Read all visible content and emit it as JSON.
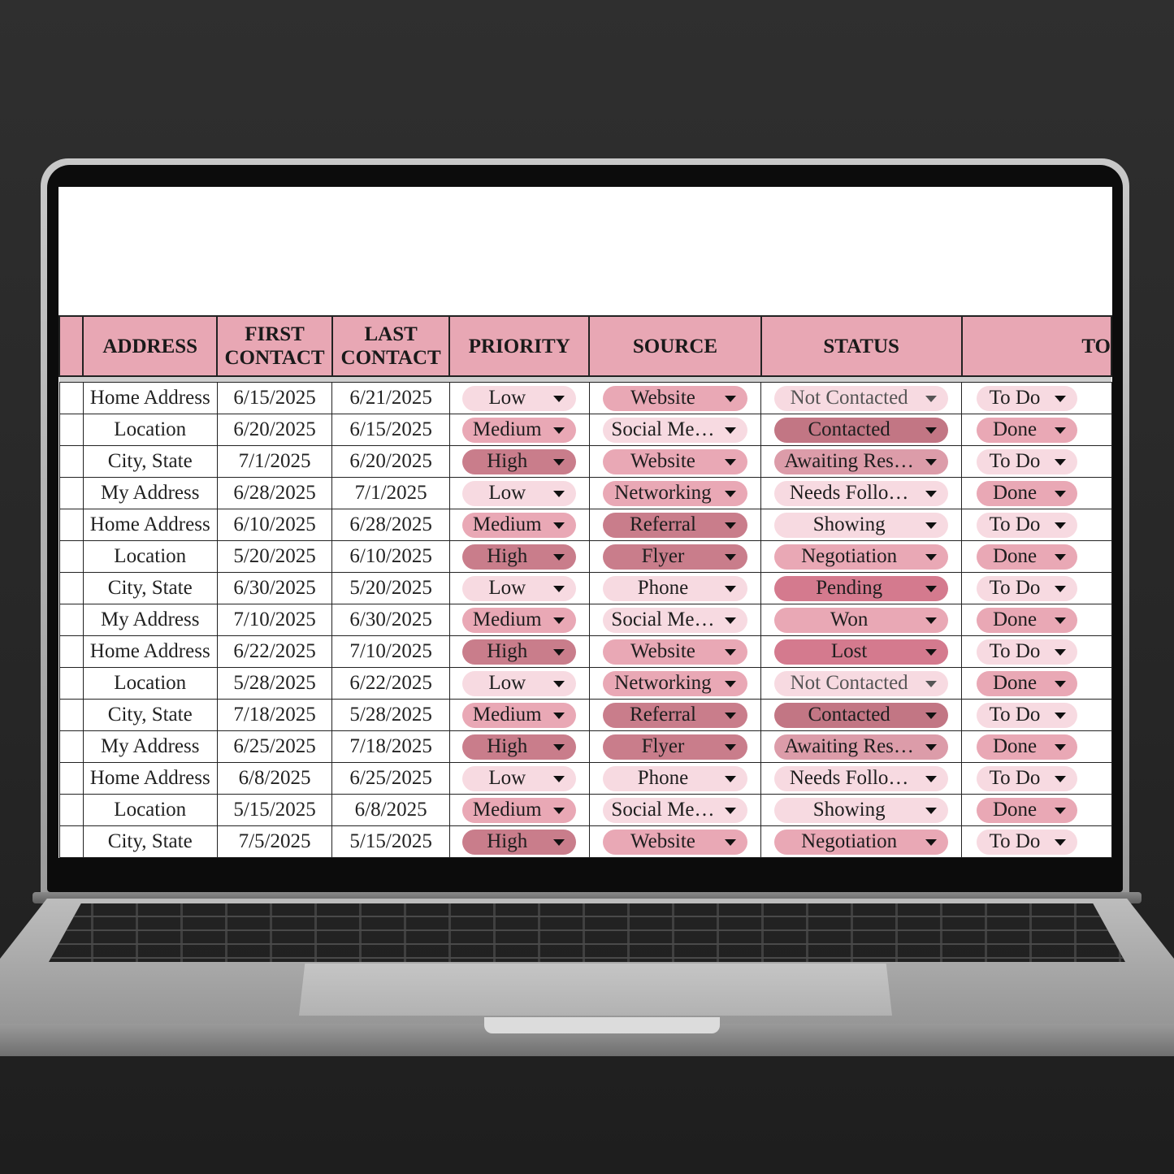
{
  "colors": {
    "light": "#f7dae1",
    "medium": "#e9a8b5",
    "dark": "#c97d8b",
    "deep": "#d47a8e",
    "awaiting": "#dc9ca9",
    "contacted": "#c27684",
    "header": "#e8a7b4"
  },
  "columns": [
    "",
    "ADDRESS",
    "FIRST CONTACT",
    "LAST CONTACT",
    "PRIORITY",
    "SOURCE",
    "STATUS",
    "TO"
  ],
  "pill_colors": {
    "priority": {
      "Low": "light",
      "Medium": "medium",
      "High": "dark"
    },
    "source": {
      "Website": "medium",
      "Social Me…": "light",
      "Networking": "medium",
      "Referral": "dark",
      "Flyer": "dark",
      "Phone": "light"
    },
    "status": {
      "Not Contacted": "light",
      "Contacted": "contacted",
      "Awaiting Res…": "awaiting",
      "Needs Follo…": "light",
      "Showing": "light",
      "Negotiation": "medium",
      "Pending": "deep",
      "Won": "medium",
      "Lost": "deep"
    },
    "todo": {
      "To Do": "light",
      "Done": "medium"
    }
  },
  "rows": [
    {
      "address": "Home Address",
      "first": "6/15/2025",
      "last": "6/21/2025",
      "priority": "Low",
      "source": "Website",
      "status": "Not Contacted",
      "todo": "To Do"
    },
    {
      "address": "Location",
      "first": "6/20/2025",
      "last": "6/15/2025",
      "priority": "Medium",
      "source": "Social Me…",
      "status": "Contacted",
      "todo": "Done"
    },
    {
      "address": "City, State",
      "first": "7/1/2025",
      "last": "6/20/2025",
      "priority": "High",
      "source": "Website",
      "status": "Awaiting Res…",
      "todo": "To Do"
    },
    {
      "address": "My Address",
      "first": "6/28/2025",
      "last": "7/1/2025",
      "priority": "Low",
      "source": "Networking",
      "status": "Needs Follo…",
      "todo": "Done"
    },
    {
      "address": "Home Address",
      "first": "6/10/2025",
      "last": "6/28/2025",
      "priority": "Medium",
      "source": "Referral",
      "status": "Showing",
      "todo": "To Do"
    },
    {
      "address": "Location",
      "first": "5/20/2025",
      "last": "6/10/2025",
      "priority": "High",
      "source": "Flyer",
      "status": "Negotiation",
      "todo": "Done"
    },
    {
      "address": "City, State",
      "first": "6/30/2025",
      "last": "5/20/2025",
      "priority": "Low",
      "source": "Phone",
      "status": "Pending",
      "todo": "To Do"
    },
    {
      "address": "My Address",
      "first": "7/10/2025",
      "last": "6/30/2025",
      "priority": "Medium",
      "source": "Social Me…",
      "status": "Won",
      "todo": "Done"
    },
    {
      "address": "Home Address",
      "first": "6/22/2025",
      "last": "7/10/2025",
      "priority": "High",
      "source": "Website",
      "status": "Lost",
      "todo": "To Do"
    },
    {
      "address": "Location",
      "first": "5/28/2025",
      "last": "6/22/2025",
      "priority": "Low",
      "source": "Networking",
      "status": "Not Contacted",
      "todo": "Done"
    },
    {
      "address": "City, State",
      "first": "7/18/2025",
      "last": "5/28/2025",
      "priority": "Medium",
      "source": "Referral",
      "status": "Contacted",
      "todo": "To Do"
    },
    {
      "address": "My Address",
      "first": "6/25/2025",
      "last": "7/18/2025",
      "priority": "High",
      "source": "Flyer",
      "status": "Awaiting Res…",
      "todo": "Done"
    },
    {
      "address": "Home Address",
      "first": "6/8/2025",
      "last": "6/25/2025",
      "priority": "Low",
      "source": "Phone",
      "status": "Needs Follo…",
      "todo": "To Do"
    },
    {
      "address": "Location",
      "first": "5/15/2025",
      "last": "6/8/2025",
      "priority": "Medium",
      "source": "Social Me…",
      "status": "Showing",
      "todo": "Done"
    },
    {
      "address": "City, State",
      "first": "7/5/2025",
      "last": "5/15/2025",
      "priority": "High",
      "source": "Website",
      "status": "Negotiation",
      "todo": "To Do"
    }
  ]
}
